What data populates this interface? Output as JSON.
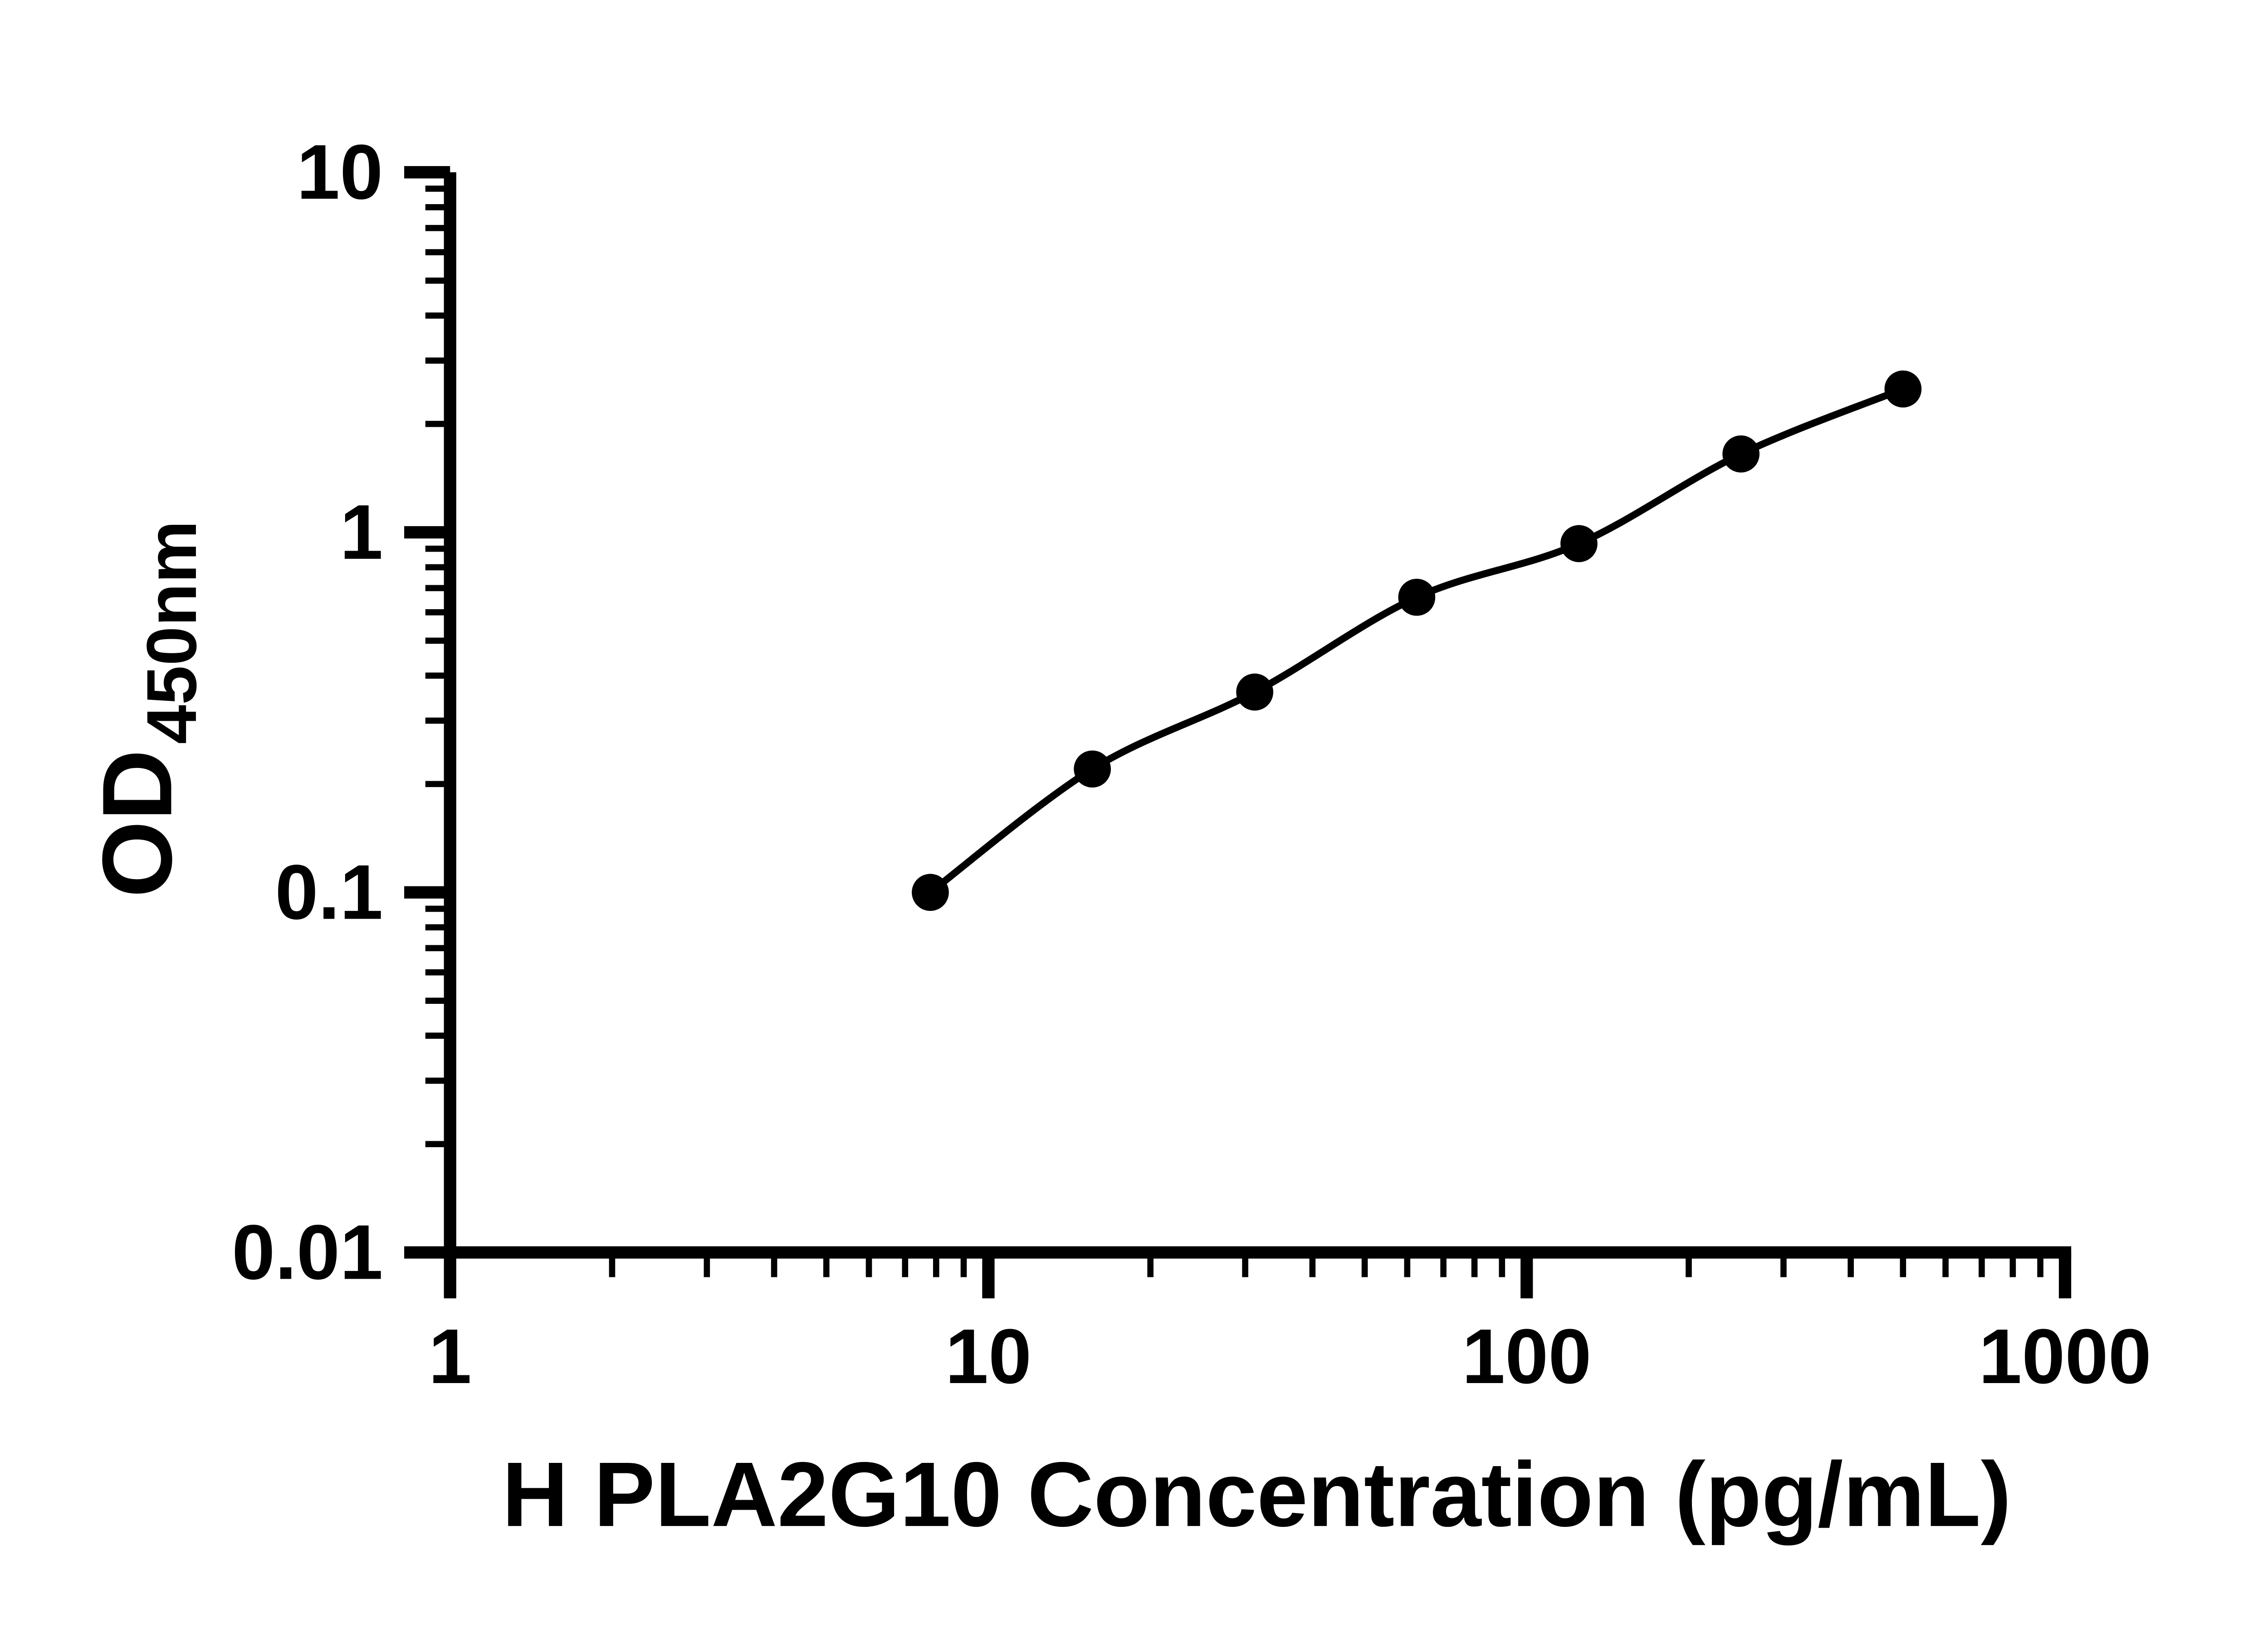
{
  "figure": {
    "background": "#ffffff"
  },
  "chart_data": {
    "type": "scatter",
    "title": "",
    "xlabel": "H PLA2G10 Concentration (pg/mL)",
    "ylabel_main": "OD",
    "ylabel_subscript": "450nm",
    "x_scale": "log10",
    "y_scale": "log10",
    "xlim": [
      1,
      1000
    ],
    "ylim": [
      0.01,
      10
    ],
    "x_ticks": [
      1,
      10,
      100,
      1000
    ],
    "x_tick_labels": [
      "1",
      "10",
      "100",
      "1000"
    ],
    "y_ticks": [
      0.01,
      0.1,
      1,
      10
    ],
    "y_tick_labels": [
      "0.01",
      "0.1",
      "1",
      "10"
    ],
    "grid": false,
    "legend": "none",
    "axis_color": "#000000",
    "series": [
      {
        "marker": "filled-circle",
        "marker_color": "#000000",
        "line_color": "#000000",
        "points": [
          {
            "x": 7.8,
            "y": 0.1
          },
          {
            "x": 15.6,
            "y": 0.22
          },
          {
            "x": 31.25,
            "y": 0.36
          },
          {
            "x": 62.5,
            "y": 0.66
          },
          {
            "x": 125,
            "y": 0.93
          },
          {
            "x": 250,
            "y": 1.65
          },
          {
            "x": 500,
            "y": 2.5
          }
        ]
      }
    ]
  }
}
